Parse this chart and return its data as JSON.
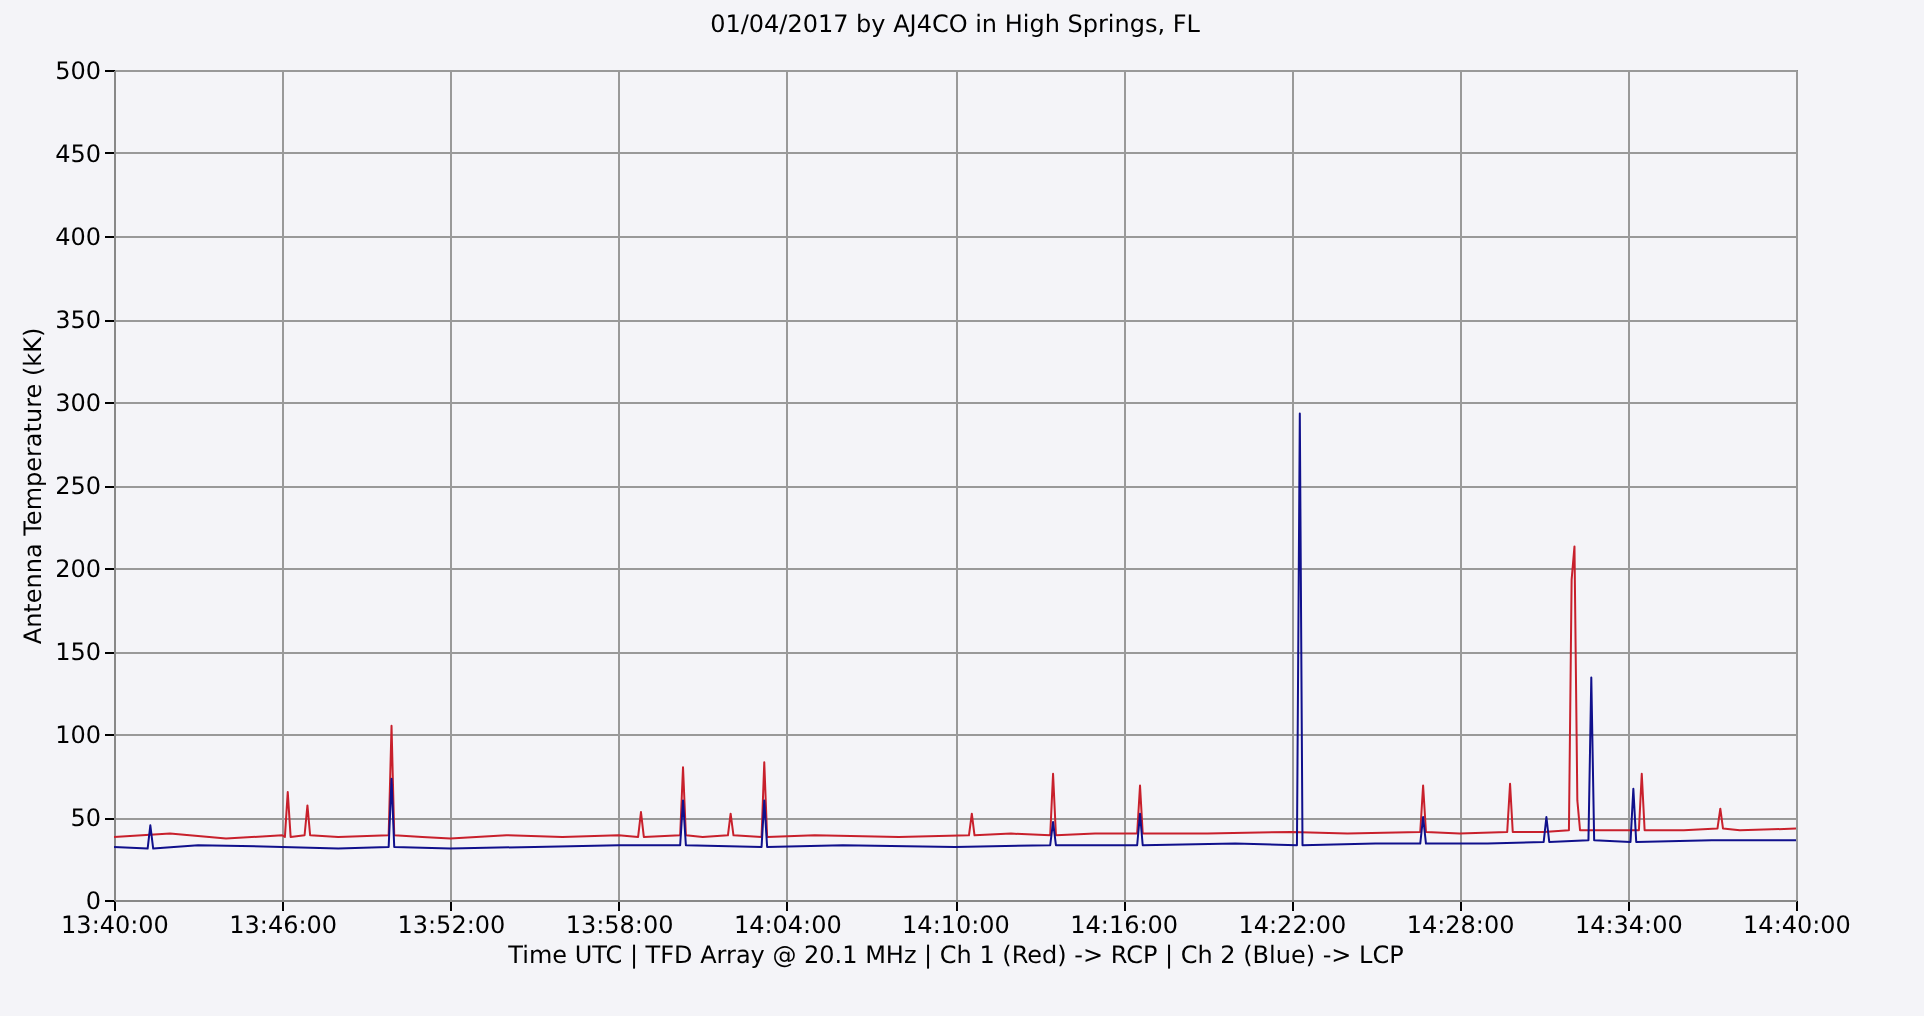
{
  "chart_data": {
    "type": "line",
    "title": "01/04/2017  by  AJ4CO  in  High Springs, FL",
    "xlabel": "Time UTC    |    TFD Array @ 20.1 MHz    |    Ch 1 (Red) -> RCP    |    Ch 2 (Blue)  -> LCP",
    "ylabel": "Antenna Temperature (kK)",
    "xlim": [
      13.6667,
      14.6667
    ],
    "xticks": [
      {
        "value": 13.6667,
        "label": "13:40:00"
      },
      {
        "value": 13.7667,
        "label": "13:46:00"
      },
      {
        "value": 13.8667,
        "label": "13:52:00"
      },
      {
        "value": 13.9667,
        "label": "13:58:00"
      },
      {
        "value": 14.0667,
        "label": "14:04:00"
      },
      {
        "value": 14.1667,
        "label": "14:10:00"
      },
      {
        "value": 14.2667,
        "label": "14:16:00"
      },
      {
        "value": 14.3667,
        "label": "14:22:00"
      },
      {
        "value": 14.4667,
        "label": "14:28:00"
      },
      {
        "value": 14.5667,
        "label": "14:34:00"
      },
      {
        "value": 14.6667,
        "label": "14:40:00"
      }
    ],
    "ylim": [
      0,
      500
    ],
    "yticks": [
      0,
      50,
      100,
      150,
      200,
      250,
      300,
      350,
      400,
      450,
      500
    ],
    "grid": true,
    "legend": false,
    "marker": "none",
    "series": [
      {
        "color": "#c8202c",
        "x": [
          13.6667,
          13.7,
          13.7333,
          13.7667,
          13.7683,
          13.77,
          13.7717,
          13.78,
          13.7817,
          13.7833,
          13.8,
          13.83,
          13.8317,
          13.8333,
          13.85,
          13.8667,
          13.9,
          13.9333,
          13.9667,
          13.9783,
          13.98,
          13.9817,
          14.0033,
          14.005,
          14.0067,
          14.0167,
          14.0317,
          14.0333,
          14.035,
          14.0517,
          14.0533,
          14.055,
          14.0833,
          14.1333,
          14.175,
          14.1767,
          14.1783,
          14.2,
          14.2233,
          14.225,
          14.2267,
          14.25,
          14.275,
          14.2767,
          14.2783,
          14.3167,
          14.3667,
          14.4,
          14.4433,
          14.445,
          14.4467,
          14.4667,
          14.495,
          14.4967,
          14.4983,
          14.5167,
          14.5317,
          14.5333,
          14.535,
          14.5367,
          14.5383,
          14.5583,
          14.5733,
          14.575,
          14.5767,
          14.6,
          14.62,
          14.6217,
          14.6233,
          14.6333,
          14.6667
        ],
        "values": [
          38,
          40,
          37,
          39,
          38,
          65,
          38,
          39,
          57,
          39,
          38,
          39,
          105,
          39,
          38,
          37,
          39,
          38,
          39,
          38,
          53,
          38,
          39,
          80,
          39,
          38,
          39,
          52,
          39,
          38,
          83,
          38,
          39,
          38,
          39,
          52,
          39,
          40,
          39,
          76,
          39,
          40,
          40,
          69,
          40,
          40,
          41,
          40,
          41,
          69,
          41,
          40,
          41,
          70,
          41,
          41,
          42,
          193,
          213,
          60,
          42,
          42,
          42,
          76,
          42,
          42,
          43,
          55,
          43,
          42,
          43
        ]
      },
      {
        "color": "#10108c",
        "x": [
          13.6667,
          13.6867,
          13.6883,
          13.69,
          13.7167,
          13.7667,
          13.8,
          13.83,
          13.8317,
          13.8333,
          13.8667,
          13.9167,
          13.9667,
          14.0033,
          14.005,
          14.0067,
          14.0517,
          14.0533,
          14.055,
          14.1,
          14.1667,
          14.2233,
          14.225,
          14.2267,
          14.275,
          14.2767,
          14.2783,
          14.3333,
          14.37,
          14.3717,
          14.3733,
          14.4167,
          14.4433,
          14.445,
          14.4467,
          14.4833,
          14.5167,
          14.5183,
          14.52,
          14.5433,
          14.545,
          14.5467,
          14.5683,
          14.57,
          14.5717,
          14.6167,
          14.6667
        ],
        "values": [
          32,
          31,
          45,
          31,
          33,
          32,
          31,
          32,
          73,
          32,
          31,
          32,
          33,
          33,
          60,
          33,
          32,
          60,
          32,
          33,
          32,
          33,
          47,
          33,
          33,
          52,
          33,
          34,
          33,
          293,
          33,
          34,
          34,
          50,
          34,
          34,
          35,
          50,
          35,
          36,
          134,
          36,
          35,
          67,
          35,
          36,
          36
        ]
      }
    ]
  }
}
